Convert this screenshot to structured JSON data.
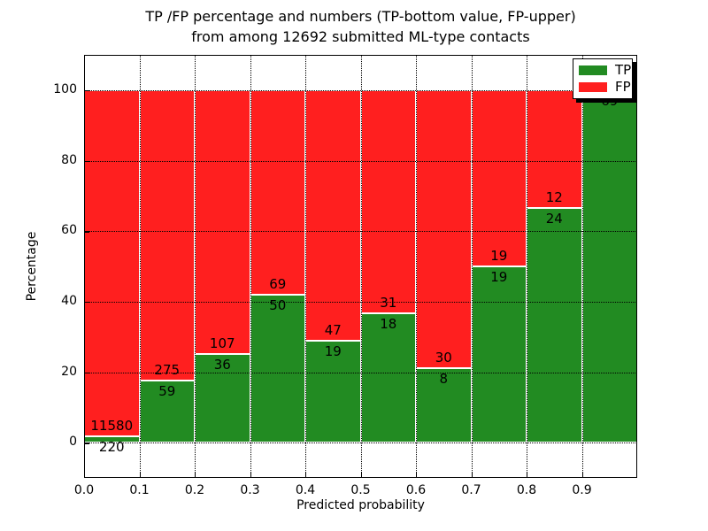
{
  "title": {
    "line1": "TP /FP percentage and numbers (TP-bottom value, FP-upper)",
    "line2": "from among 12692 submitted ML-type contacts"
  },
  "axes": {
    "xlabel": "Predicted probability",
    "ylabel": "Percentage",
    "x_tick_labels": [
      "0.0",
      "0.1",
      "0.2",
      "0.3",
      "0.4",
      "0.5",
      "0.6",
      "0.7",
      "0.8",
      "0.9"
    ],
    "y_tick_labels": [
      "0",
      "20",
      "40",
      "60",
      "80",
      "100"
    ]
  },
  "legend": {
    "items": [
      {
        "label": "TP",
        "color": "#228b22"
      },
      {
        "label": "FP",
        "color": "#ff1f1f"
      }
    ]
  },
  "colors": {
    "tp": "#228b22",
    "fp": "#ff1f1f",
    "background": "#ffffff",
    "grid": "#000000"
  },
  "chart_data": {
    "type": "bar",
    "subtype": "stacked-100-percent",
    "title": "TP /FP percentage and numbers (TP-bottom value, FP-upper) from among 12692 submitted ML-type contacts",
    "xlabel": "Predicted probability",
    "ylabel": "Percentage",
    "xlim": [
      0.0,
      1.0
    ],
    "ylim": [
      -10,
      110
    ],
    "x_ticks": [
      0.0,
      0.1,
      0.2,
      0.3,
      0.4,
      0.5,
      0.6,
      0.7,
      0.8,
      0.9
    ],
    "y_ticks": [
      0,
      20,
      40,
      60,
      80,
      100
    ],
    "grid": true,
    "legend_position": "upper right",
    "total_contacts": 12692,
    "bin_width": 0.1,
    "series": [
      {
        "name": "TP",
        "color": "#228b22",
        "counts": [
          220,
          59,
          36,
          50,
          19,
          18,
          8,
          19,
          24,
          69
        ]
      },
      {
        "name": "FP",
        "color": "#ff1f1f",
        "counts": [
          11580,
          275,
          107,
          69,
          47,
          31,
          30,
          19,
          12,
          0
        ]
      }
    ],
    "bins": [
      {
        "x_start": 0.0,
        "x_end": 0.1,
        "tp": 220,
        "fp": 11580,
        "tp_percent": 1.86
      },
      {
        "x_start": 0.1,
        "x_end": 0.2,
        "tp": 59,
        "fp": 275,
        "tp_percent": 17.66
      },
      {
        "x_start": 0.2,
        "x_end": 0.3,
        "tp": 36,
        "fp": 107,
        "tp_percent": 25.17
      },
      {
        "x_start": 0.3,
        "x_end": 0.4,
        "tp": 50,
        "fp": 69,
        "tp_percent": 42.02
      },
      {
        "x_start": 0.4,
        "x_end": 0.5,
        "tp": 19,
        "fp": 47,
        "tp_percent": 28.79
      },
      {
        "x_start": 0.5,
        "x_end": 0.6,
        "tp": 18,
        "fp": 31,
        "tp_percent": 36.73
      },
      {
        "x_start": 0.6,
        "x_end": 0.7,
        "tp": 8,
        "fp": 30,
        "tp_percent": 21.05
      },
      {
        "x_start": 0.7,
        "x_end": 0.8,
        "tp": 19,
        "fp": 19,
        "tp_percent": 50.0
      },
      {
        "x_start": 0.8,
        "x_end": 0.9,
        "tp": 24,
        "fp": 12,
        "tp_percent": 66.67
      },
      {
        "x_start": 0.9,
        "x_end": 1.0,
        "tp": 69,
        "fp": 0,
        "tp_percent": 100.0
      }
    ]
  }
}
